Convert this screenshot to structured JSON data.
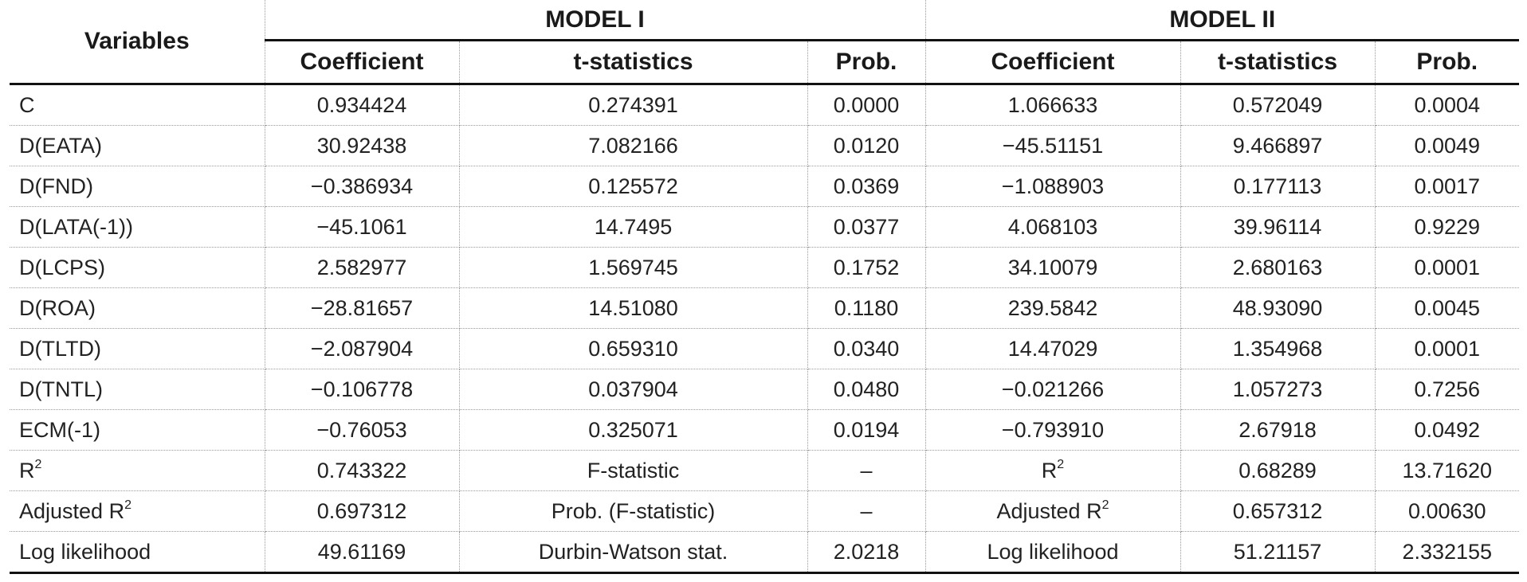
{
  "headers": {
    "variables": "Variables",
    "model1": "MODEL I",
    "model2": "MODEL II",
    "coefficient": "Coefficient",
    "tstat": "t-statistics",
    "prob": "Prob."
  },
  "rows": [
    {
      "var": "C",
      "c1": "0.934424",
      "t1": "0.274391",
      "p1": "0.0000",
      "c2": "1.066633",
      "t2": "0.572049",
      "p2": "0.0004"
    },
    {
      "var": "D(EATA)",
      "c1": "30.92438",
      "t1": "7.082166",
      "p1": "0.0120",
      "c2": "−45.51151",
      "t2": "9.466897",
      "p2": "0.0049"
    },
    {
      "var": "D(FND)",
      "c1": "−0.386934",
      "t1": "0.125572",
      "p1": "0.0369",
      "c2": "−1.088903",
      "t2": "0.177113",
      "p2": "0.0017"
    },
    {
      "var": "D(LATA(-1))",
      "c1": "−45.1061",
      "t1": "14.7495",
      "p1": "0.0377",
      "c2": "4.068103",
      "t2": "39.96114",
      "p2": "0.9229"
    },
    {
      "var": "D(LCPS)",
      "c1": "2.582977",
      "t1": "1.569745",
      "p1": "0.1752",
      "c2": "34.10079",
      "t2": "2.680163",
      "p2": "0.0001"
    },
    {
      "var": "D(ROA)",
      "c1": "−28.81657",
      "t1": "14.51080",
      "p1": "0.1180",
      "c2": "239.5842",
      "t2": "48.93090",
      "p2": "0.0045"
    },
    {
      "var": "D(TLTD)",
      "c1": "−2.087904",
      "t1": "0.659310",
      "p1": "0.0340",
      "c2": "14.47029",
      "t2": "1.354968",
      "p2": "0.0001"
    },
    {
      "var": "D(TNTL)",
      "c1": "−0.106778",
      "t1": "0.037904",
      "p1": "0.0480",
      "c2": "−0.021266",
      "t2": "1.057273",
      "p2": "0.7256"
    },
    {
      "var": "ECM(-1)",
      "c1": "−0.76053",
      "t1": "0.325071",
      "p1": "0.0194",
      "c2": "−0.793910",
      "t2": "2.67918",
      "p2": "0.0492"
    }
  ],
  "stats": {
    "r2_label": "R",
    "r2_sup": "2",
    "r2_val1": "0.743322",
    "fstat_label": "F-statistic",
    "fstat_val": "–",
    "r2_val2": "0.68289",
    "fstat_val2": "13.71620",
    "adj_label": "Adjusted R",
    "adj_sup": "2",
    "adj_val1": "0.697312",
    "pf_label": "Prob. (F-statistic)",
    "pf_val": "–",
    "adj_val2": "0.657312",
    "pf_val2": "0.00630",
    "ll_label": "Log likelihood",
    "ll_val1": "49.61169",
    "dw_label": "Durbin-Watson stat.",
    "dw_val": "2.0218",
    "ll_val2": "51.21157",
    "dw_val2": "2.332155"
  }
}
